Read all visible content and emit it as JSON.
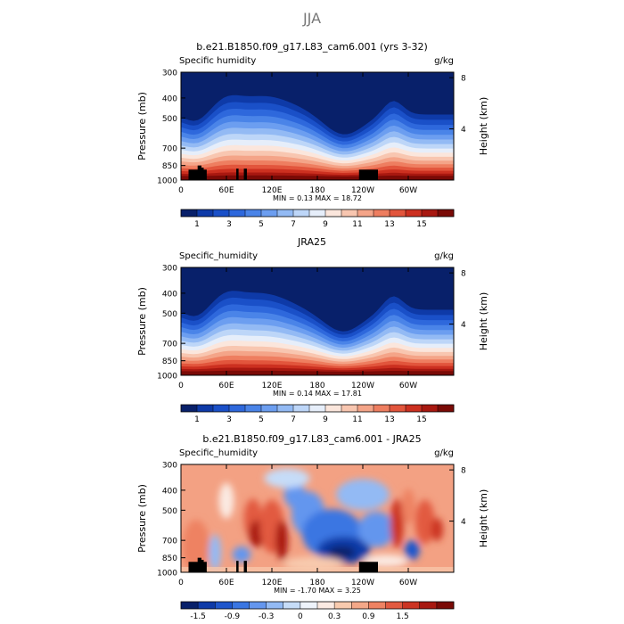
{
  "page_title": "JJA",
  "chart_data": [
    {
      "type": "heatmap",
      "title": "b.e21.B1850.f09_g17.L83_cam6.001 (yrs 3-32)",
      "variable_label": "Specific humidity",
      "units": "g/kg",
      "ylabel": "Pressure (mb)",
      "ylabel_right": "Height (km)",
      "x_ticks": [
        "0",
        "60E",
        "120E",
        "180",
        "120W",
        "60W"
      ],
      "x_tick_positions_deg": [
        0,
        60,
        120,
        180,
        240,
        300
      ],
      "xlim": [
        0,
        360
      ],
      "y_ticks": [
        "300",
        "400",
        "500",
        "700",
        "850",
        "1000"
      ],
      "y_tick_values_mb": [
        300,
        400,
        500,
        700,
        850,
        1000
      ],
      "ylim": [
        1000,
        300
      ],
      "y_scale": "log",
      "height_ticks": [
        "8",
        "4"
      ],
      "height_tick_values_km": [
        8,
        4
      ],
      "stats": "MIN =    0.13   MAX =   18.72",
      "colorbar_labels": [
        "1",
        "3",
        "5",
        "7",
        "9",
        "11",
        "13",
        "15"
      ],
      "colorbar_levels": [
        0.5,
        1,
        2,
        3,
        4,
        5,
        6,
        7,
        8,
        9,
        10,
        11,
        12,
        13,
        14,
        15,
        16
      ],
      "colorbar_colors": [
        "#08206a",
        "#0e3aa8",
        "#1a50c8",
        "#2e68dc",
        "#4a84e8",
        "#6c9ef0",
        "#93baf4",
        "#bdd6f8",
        "#e6eefa",
        "#fbe6dc",
        "#f8c6b0",
        "#f4a488",
        "#ee7e60",
        "#e2553c",
        "#cc3020",
        "#a81810",
        "#7a0a06"
      ],
      "value_range": [
        0.13,
        18.72
      ]
    },
    {
      "type": "heatmap",
      "title": "JRA25",
      "variable_label": "Specific_humidity",
      "units": "g/kg",
      "ylabel": "Pressure (mb)",
      "ylabel_right": "Height (km)",
      "x_ticks": [
        "0",
        "60E",
        "120E",
        "180",
        "120W",
        "60W"
      ],
      "x_tick_positions_deg": [
        0,
        60,
        120,
        180,
        240,
        300
      ],
      "xlim": [
        0,
        360
      ],
      "y_ticks": [
        "300",
        "400",
        "500",
        "700",
        "850",
        "1000"
      ],
      "y_tick_values_mb": [
        300,
        400,
        500,
        700,
        850,
        1000
      ],
      "ylim": [
        1000,
        300
      ],
      "y_scale": "log",
      "height_ticks": [
        "8",
        "4"
      ],
      "height_tick_values_km": [
        8,
        4
      ],
      "stats": "MIN =    0.14   MAX =   17.81",
      "colorbar_labels": [
        "1",
        "3",
        "5",
        "7",
        "9",
        "11",
        "13",
        "15"
      ],
      "colorbar_levels": [
        0.5,
        1,
        2,
        3,
        4,
        5,
        6,
        7,
        8,
        9,
        10,
        11,
        12,
        13,
        14,
        15,
        16
      ],
      "colorbar_colors": [
        "#08206a",
        "#0e3aa8",
        "#1a50c8",
        "#2e68dc",
        "#4a84e8",
        "#6c9ef0",
        "#93baf4",
        "#bdd6f8",
        "#e6eefa",
        "#fbe6dc",
        "#f8c6b0",
        "#f4a488",
        "#ee7e60",
        "#e2553c",
        "#cc3020",
        "#a81810",
        "#7a0a06"
      ],
      "value_range": [
        0.14,
        17.81
      ]
    },
    {
      "type": "heatmap",
      "title": "b.e21.B1850.f09_g17.L83_cam6.001 - JRA25",
      "variable_label": "Specific_humidity",
      "units": "g/kg",
      "ylabel": "Pressure (mb)",
      "ylabel_right": "Height (km)",
      "x_ticks": [
        "0",
        "60E",
        "120E",
        "180",
        "120W",
        "60W"
      ],
      "x_tick_positions_deg": [
        0,
        60,
        120,
        180,
        240,
        300
      ],
      "xlim": [
        0,
        360
      ],
      "y_ticks": [
        "300",
        "400",
        "500",
        "700",
        "850",
        "1000"
      ],
      "y_tick_values_mb": [
        300,
        400,
        500,
        700,
        850,
        1000
      ],
      "ylim": [
        1000,
        300
      ],
      "y_scale": "log",
      "height_ticks": [
        "8",
        "4"
      ],
      "height_tick_values_km": [
        8,
        4
      ],
      "stats": "MIN =   -1.70   MAX =    3.25",
      "colorbar_labels": [
        "-1.5",
        "-0.9",
        "-0.3",
        "0",
        "0.3",
        "0.9",
        "1.5"
      ],
      "colorbar_levels": [
        -1.8,
        -1.5,
        -1.2,
        -0.9,
        -0.6,
        -0.3,
        -0.1,
        0,
        0.1,
        0.3,
        0.6,
        0.9,
        1.2,
        1.5,
        1.8,
        2.1
      ],
      "colorbar_colors": [
        "#08206a",
        "#0e3aa8",
        "#1f56cc",
        "#3a76e2",
        "#6496ee",
        "#93baf4",
        "#c6dcf8",
        "#eef3fb",
        "#fbeae2",
        "#f8caae",
        "#f4a888",
        "#ee8262",
        "#e25a40",
        "#cc3422",
        "#a81810",
        "#7a0a06"
      ],
      "value_range": [
        -1.7,
        3.25
      ]
    }
  ]
}
